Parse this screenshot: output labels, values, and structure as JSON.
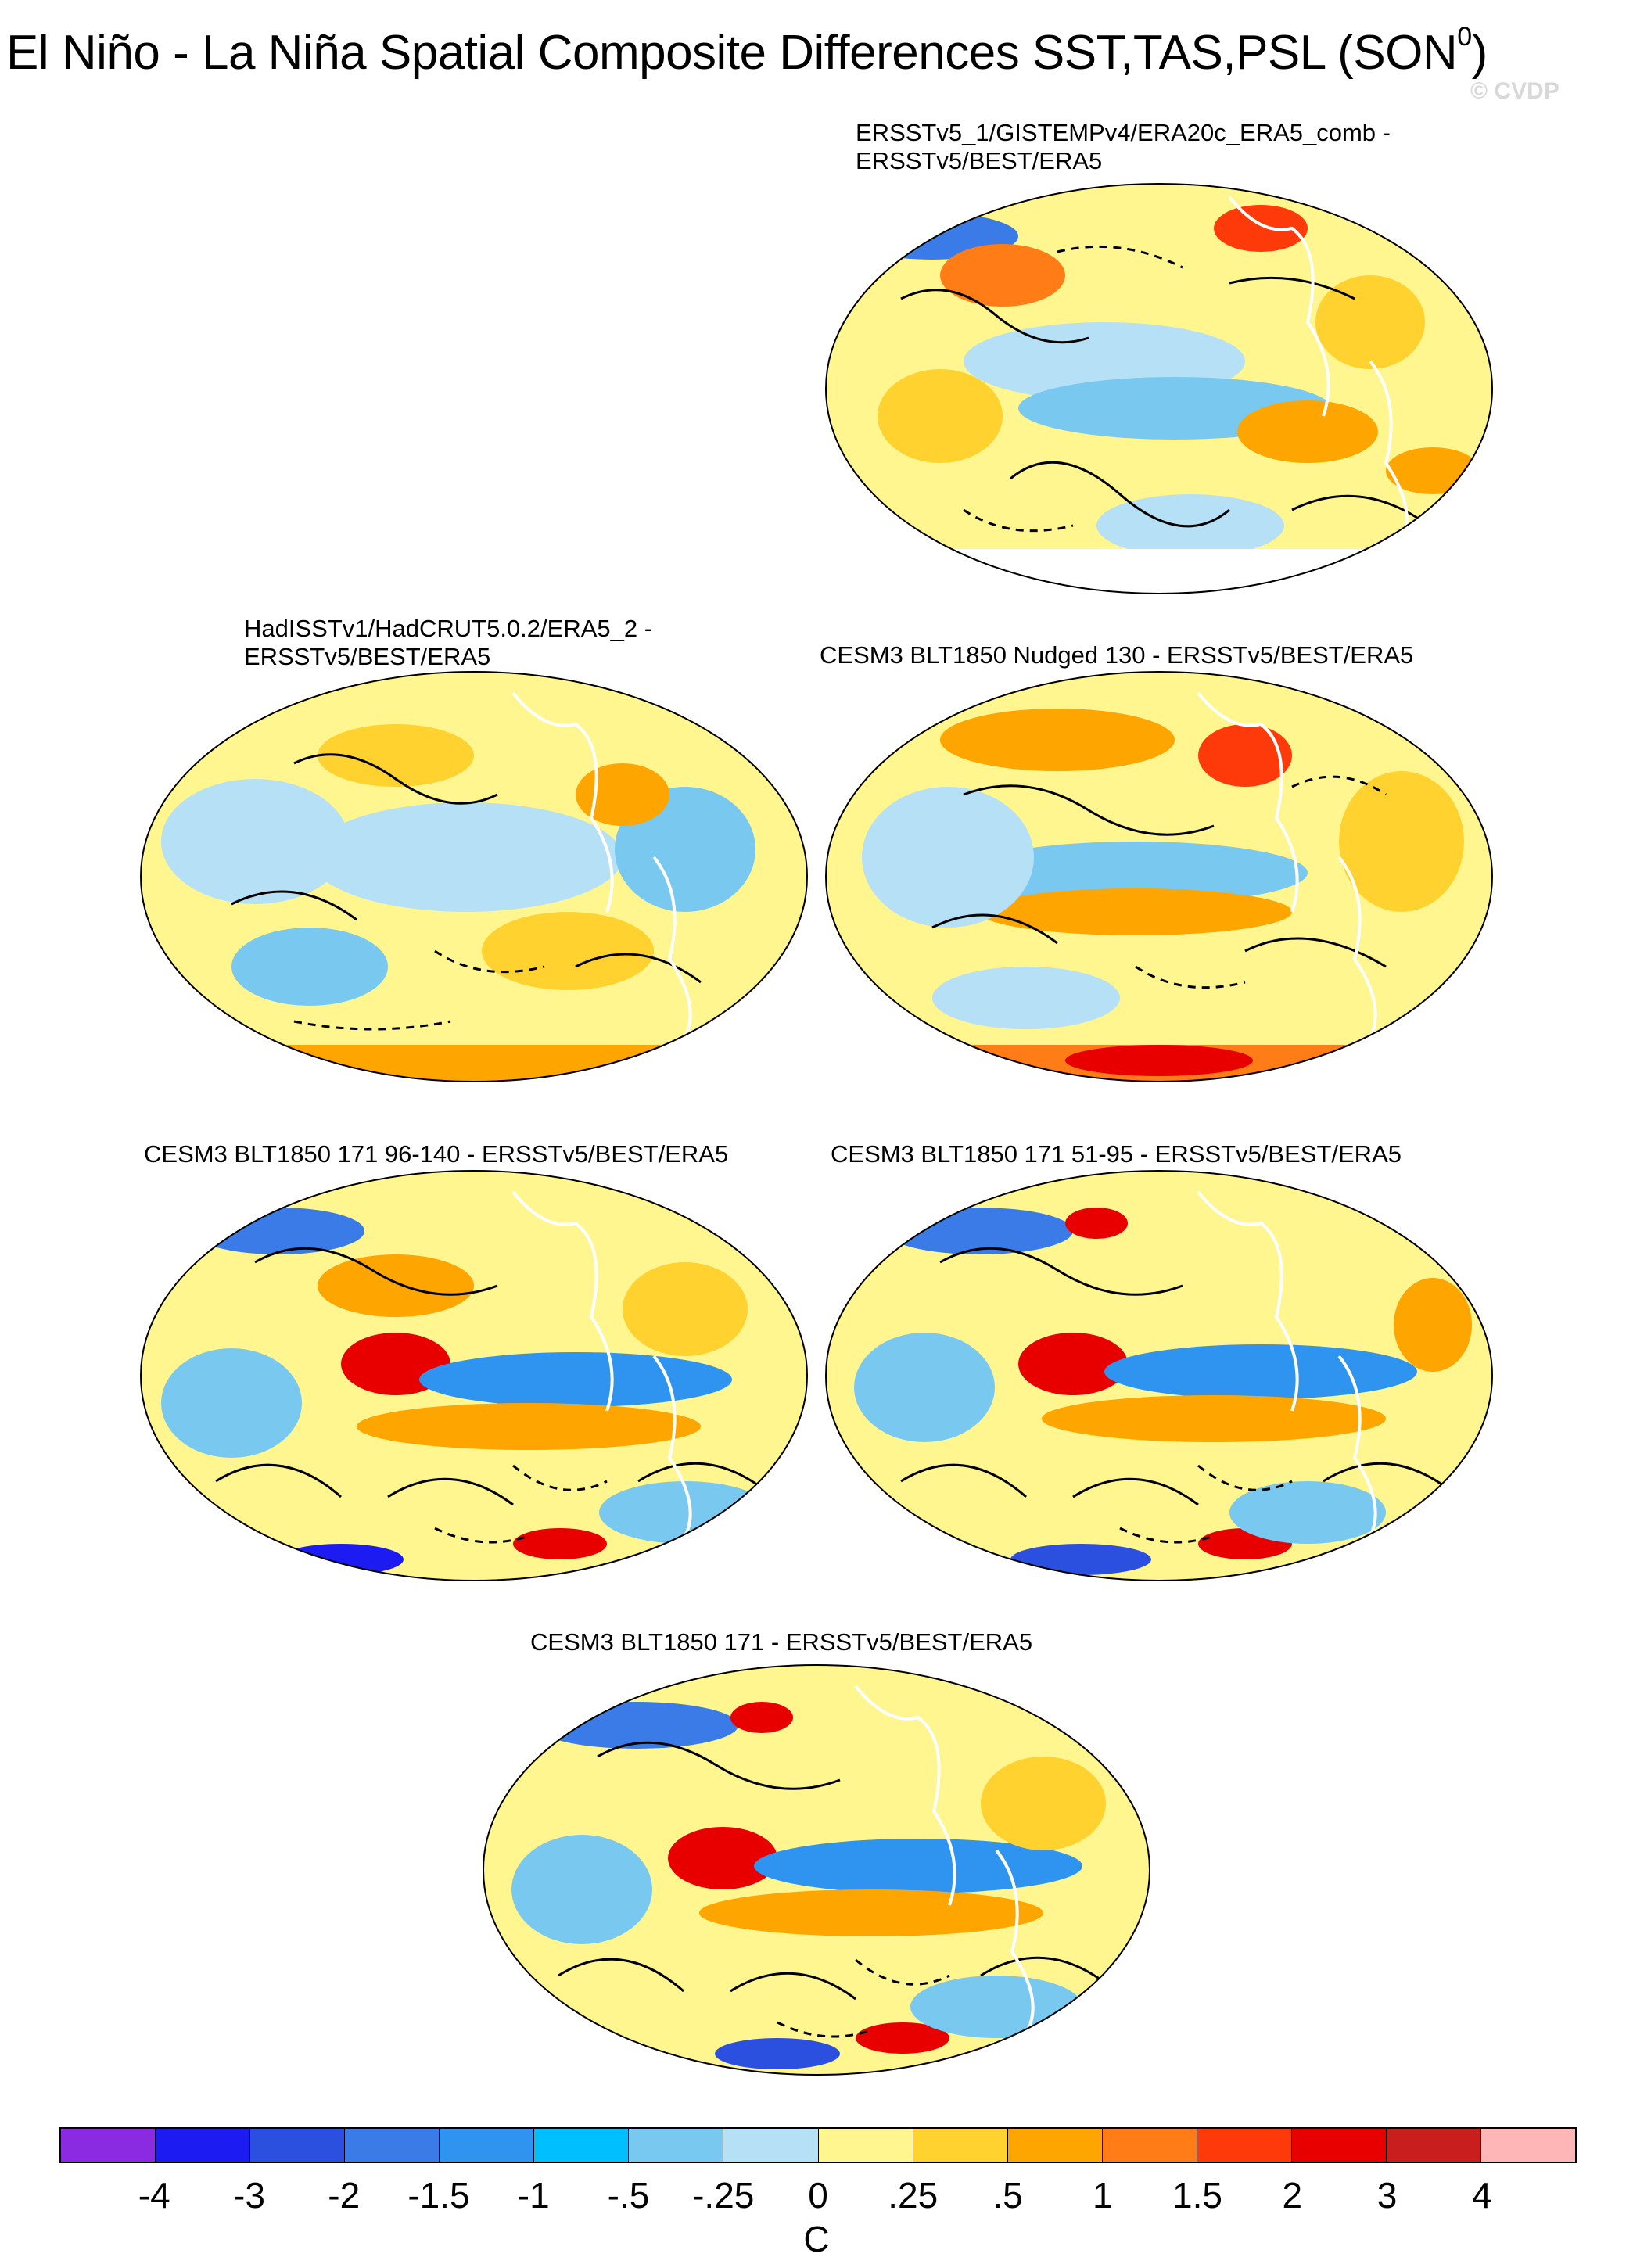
{
  "title": {
    "main": "El Niño - La Niña Spatial Composite Differences SST,TAS,PSL (SON",
    "superscript": "0",
    "close": ")"
  },
  "watermark": "© CVDP",
  "panels": [
    {
      "id": "p1",
      "title_line1": "ERSSTv5_1/GISTEMPv4/ERA20c_ERA5_comb -",
      "title_line2": "ERSSTv5/BEST/ERA5"
    },
    {
      "id": "p2",
      "title_line1": "HadISSTv1/HadCRUT5.0.2/ERA5_2 -",
      "title_line2": "ERSSTv5/BEST/ERA5"
    },
    {
      "id": "p3",
      "title_line1": "CESM3 BLT1850 Nudged 130 - ERSSTv5/BEST/ERA5",
      "title_line2": ""
    },
    {
      "id": "p4",
      "title_line1": "CESM3 BLT1850 171 96-140 - ERSSTv5/BEST/ERA5",
      "title_line2": ""
    },
    {
      "id": "p5",
      "title_line1": "CESM3 BLT1850 171 51-95 - ERSSTv5/BEST/ERA5",
      "title_line2": ""
    },
    {
      "id": "p6",
      "title_line1": "CESM3 BLT1850 171 - ERSSTv5/BEST/ERA5",
      "title_line2": ""
    }
  ],
  "colorbar": {
    "colors": [
      "#8a2be2",
      "#1c1cf2",
      "#2b4fde",
      "#3a7be8",
      "#2e94f0",
      "#00bfff",
      "#79c8f0",
      "#b5e0f5",
      "#fff68f",
      "#ffd230",
      "#ffa500",
      "#ff7c16",
      "#ff3a0a",
      "#e80000",
      "#c81e1e",
      "#ffb6b6"
    ],
    "labels": [
      "-4",
      "-3",
      "-2",
      "-1.5",
      "-1",
      "-.5",
      "-.25",
      "0",
      ".25",
      ".5",
      "1",
      "1.5",
      "2",
      "3",
      "4"
    ],
    "unit": "C"
  }
}
